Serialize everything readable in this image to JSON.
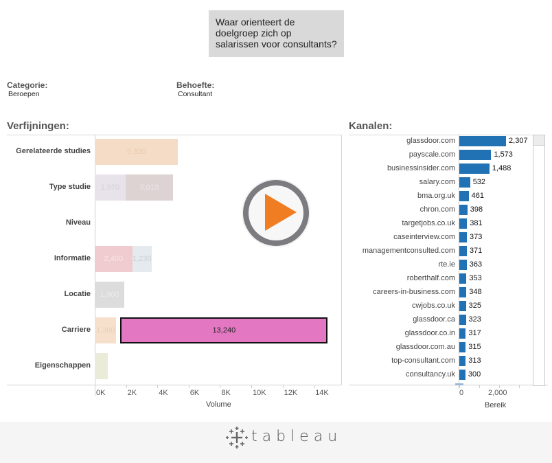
{
  "question": "Waar orienteert de doelgroep zich op salarissen voor consultants?",
  "filters": {
    "categorie": {
      "label": "Categorie:",
      "value": "Beroepen"
    },
    "behoefte": {
      "label": "Behoefte:",
      "value": "Consultant"
    }
  },
  "verfijningen": {
    "title": "Verfijningen:",
    "rows": [
      {
        "label": "Gerelateerde studies",
        "segments": [
          {
            "value": 5320,
            "label": "5,320",
            "color": "#f5dcc6",
            "text_color": "#e9cbb2"
          }
        ]
      },
      {
        "label": "Type studie",
        "segments": [
          {
            "value": 1970,
            "label": "1,970",
            "color": "#e8e3ea",
            "text_color": "#d4cdd6"
          },
          {
            "value": 3010,
            "label": "3,010",
            "color": "#ddd3d3",
            "text_color": "#ece6e6"
          }
        ]
      },
      {
        "label": "Niveau",
        "segments": []
      },
      {
        "label": "Informatie",
        "segments": [
          {
            "value": 2400,
            "label": "2,400",
            "color": "#f0ccd0",
            "text_color": "#f7e6e8"
          },
          {
            "value": 1230,
            "label": "1,230",
            "color": "#e4eaee",
            "text_color": "#c9d0d5"
          }
        ]
      },
      {
        "label": "Locatie",
        "segments": [
          {
            "value": 1900,
            "label": "1,900",
            "color": "#dcdcdc",
            "text_color": "#ececec"
          }
        ]
      },
      {
        "label": "Carriere",
        "segments": [
          {
            "value": 1380,
            "label": "1,380",
            "color": "#f6e0cc",
            "text_color": "#e6cfbb"
          },
          {
            "value": 13240,
            "label": "13,240",
            "color": "#e377c2",
            "text_color": "#222222",
            "highlighted": true
          }
        ]
      },
      {
        "label": "Eigenschappen",
        "segments": [
          {
            "value": 820,
            "label": "",
            "color": "#ebebd9",
            "text_color": "#ebebd9"
          }
        ]
      }
    ],
    "x_ticks": [
      "0K",
      "2K",
      "4K",
      "6K",
      "8K",
      "10K",
      "12K",
      "14K"
    ],
    "x_title": "Volume"
  },
  "kanalen": {
    "title": "Kanalen:",
    "bar_color": "#2171b5",
    "items": [
      {
        "label": "glassdoor.com",
        "value": 2307,
        "display": "2,307"
      },
      {
        "label": "payscale.com",
        "value": 1573,
        "display": "1,573"
      },
      {
        "label": "businessinsider.com",
        "value": 1488,
        "display": "1,488"
      },
      {
        "label": "salary.com",
        "value": 532,
        "display": "532"
      },
      {
        "label": "bma.org.uk",
        "value": 461,
        "display": "461"
      },
      {
        "label": "chron.com",
        "value": 398,
        "display": "398"
      },
      {
        "label": "targetjobs.co.uk",
        "value": 381,
        "display": "381"
      },
      {
        "label": "caseinterview.com",
        "value": 373,
        "display": "373"
      },
      {
        "label": "managementconsulted.com",
        "value": 371,
        "display": "371"
      },
      {
        "label": "rte.ie",
        "value": 363,
        "display": "363"
      },
      {
        "label": "roberthalf.com",
        "value": 353,
        "display": "353"
      },
      {
        "label": "careers-in-business.com",
        "value": 348,
        "display": "348"
      },
      {
        "label": "cwjobs.co.uk",
        "value": 325,
        "display": "325"
      },
      {
        "label": "glassdoor.ca",
        "value": 323,
        "display": "323"
      },
      {
        "label": "glassdoor.co.in",
        "value": 317,
        "display": "317"
      },
      {
        "label": "glassdoor.com.au",
        "value": 315,
        "display": "315"
      },
      {
        "label": "top-consultant.com",
        "value": 313,
        "display": "313"
      },
      {
        "label": "consultancy.uk",
        "value": 300,
        "display": "300"
      }
    ],
    "x_ticks": [
      "0",
      "2,000"
    ],
    "x_title": "Bereik"
  },
  "play_button": {
    "icon": "play-icon",
    "accent": "#f07d22"
  },
  "footer": {
    "brand": "tableau"
  },
  "chart_data": [
    {
      "type": "bar",
      "title": "Verfijningen:",
      "orientation": "horizontal-stacked",
      "categories": [
        "Gerelateerde studies",
        "Type studie",
        "Niveau",
        "Informatie",
        "Locatie",
        "Carriere",
        "Eigenschappen"
      ],
      "series": [
        {
          "name": "segment-1",
          "values": [
            5320,
            1970,
            0,
            2400,
            1900,
            1380,
            820
          ]
        },
        {
          "name": "segment-2",
          "values": [
            0,
            3010,
            0,
            1230,
            0,
            13240,
            0
          ]
        }
      ],
      "xlabel": "Volume",
      "ylabel": "",
      "xlim": [
        0,
        15000
      ],
      "x_ticks": [
        "0K",
        "2K",
        "4K",
        "6K",
        "8K",
        "10K",
        "12K",
        "14K"
      ],
      "highlighted": {
        "category": "Carriere",
        "value": 13240
      }
    },
    {
      "type": "bar",
      "title": "Kanalen:",
      "orientation": "horizontal",
      "categories": [
        "glassdoor.com",
        "payscale.com",
        "businessinsider.com",
        "salary.com",
        "bma.org.uk",
        "chron.com",
        "targetjobs.co.uk",
        "caseinterview.com",
        "managementconsulted.com",
        "rte.ie",
        "roberthalf.com",
        "careers-in-business.com",
        "cwjobs.co.uk",
        "glassdoor.ca",
        "glassdoor.co.in",
        "glassdoor.com.au",
        "top-consultant.com",
        "consultancy.uk"
      ],
      "values": [
        2307,
        1573,
        1488,
        532,
        461,
        398,
        381,
        373,
        371,
        363,
        353,
        348,
        325,
        323,
        317,
        315,
        313,
        300
      ],
      "xlabel": "Bereik",
      "ylabel": "",
      "xlim": [
        0,
        3800
      ],
      "x_ticks": [
        "0",
        "2,000"
      ]
    }
  ]
}
